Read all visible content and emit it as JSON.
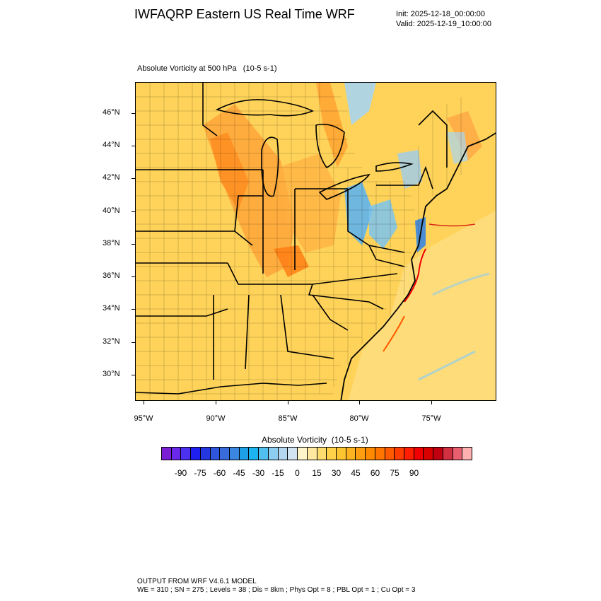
{
  "header": {
    "title": "IWFAQRP Eastern US Real Time WRF",
    "init": "Init: 2025-12-18_00:00:00",
    "valid": "Valid: 2025-12-19_10:00:00"
  },
  "plot": {
    "subtitle": "Absolute Vorticity at 500 hPa   (10-5 s-1)",
    "lat_labels": [
      "46°N",
      "44°N",
      "42°N",
      "40°N",
      "38°N",
      "36°N",
      "34°N",
      "32°N",
      "30°N"
    ],
    "lon_labels": [
      "95°W",
      "90°W",
      "85°W",
      "80°W",
      "75°W"
    ]
  },
  "colorbar": {
    "title": "Absolute Vorticity  (10-5 s-1)",
    "labels": [
      "-90",
      "-75",
      "-60",
      "-45",
      "-30",
      "-15",
      "0",
      "15",
      "30",
      "45",
      "60",
      "75",
      "90"
    ],
    "colors": [
      "#7a1fd6",
      "#6a28e8",
      "#4d31f0",
      "#1f1ff2",
      "#2437e0",
      "#2f55dc",
      "#3a6bdb",
      "#3a86e0",
      "#1ea0e6",
      "#1cb4f0",
      "#52c0ee",
      "#8ccdf0",
      "#b3d7f0",
      "#d2e4f2",
      "#fff5c8",
      "#ffe9a0",
      "#ffde70",
      "#ffd24a",
      "#ffc530",
      "#ffb320",
      "#ff9e10",
      "#ff8a00",
      "#ff7500",
      "#ff5a00",
      "#ff3c00",
      "#ff1e00",
      "#f00000",
      "#d80000",
      "#c00010",
      "#d03040",
      "#e86070",
      "#ffb0b0"
    ]
  },
  "footer": {
    "line1": "OUTPUT FROM WRF V4.6.1 MODEL",
    "line2": "WE = 310 ; SN = 275 ; Levels = 38 ; Dis = 8km ; Phys Opt = 8 ; PBL Opt = 1 ; Cu Opt = 3"
  }
}
